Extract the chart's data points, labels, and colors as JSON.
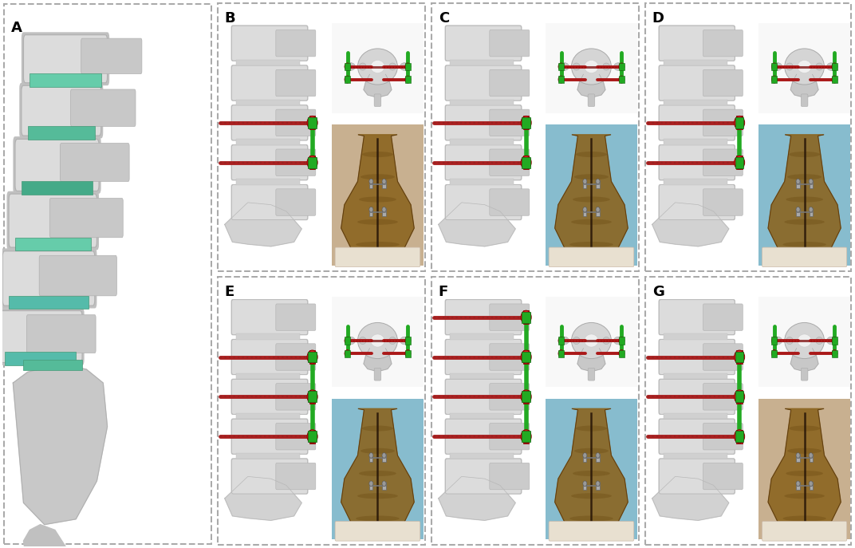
{
  "figure_width": 10.72,
  "figure_height": 6.87,
  "dpi": 100,
  "bg": "#ffffff",
  "border_color": "#aaaaaa",
  "label_fontsize": 13,
  "col_starts": [
    0.003,
    0.253,
    0.503,
    0.753
  ],
  "col_ends": [
    0.248,
    0.498,
    0.748,
    0.997
  ],
  "row_tops": [
    0.997,
    0.497
  ],
  "row_bots": [
    0.503,
    0.003
  ],
  "spine_gray": "#d0d0d0",
  "spine_dark": "#b0b0b0",
  "disc_teal": "#7dcfb6",
  "screw_red": "#cc2222",
  "rod_green": "#22aa22",
  "bone_brown": "#7a5c2e",
  "bone_dark": "#5a3c1a",
  "photo_blue": "#87bcce",
  "photo_tan": "#d4c4a0",
  "metal_gray": "#888888",
  "white": "#ffffff",
  "panel_bg": "#ffffff"
}
